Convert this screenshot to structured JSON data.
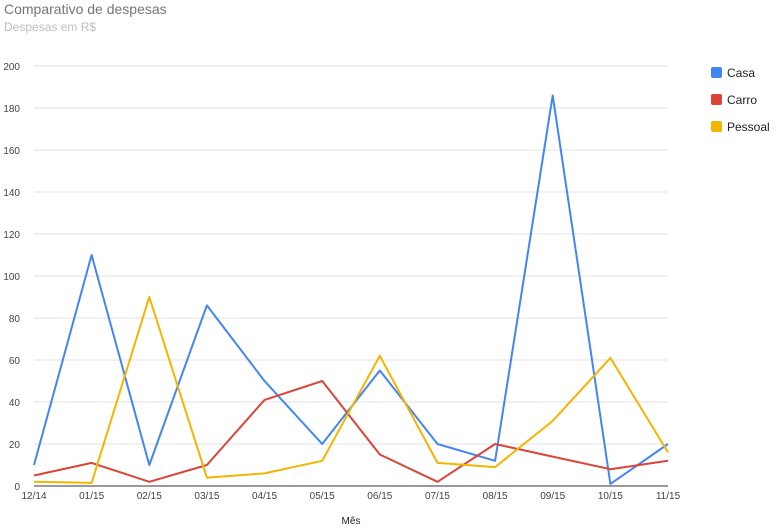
{
  "chart_data": {
    "type": "line",
    "title": "Comparativo de despesas",
    "subtitle": "Despesas em R$",
    "xlabel": "Mês",
    "ylabel": "",
    "categories": [
      "12/14",
      "01/15",
      "02/15",
      "03/15",
      "04/15",
      "05/15",
      "06/15",
      "07/15",
      "08/15",
      "09/15",
      "10/15",
      "11/15"
    ],
    "ylim": [
      0,
      200
    ],
    "yticks": [
      0,
      20,
      40,
      60,
      80,
      100,
      120,
      140,
      160,
      180,
      200
    ],
    "grid": true,
    "legend_position": "right",
    "series": [
      {
        "name": "Casa",
        "color": "#4285f4",
        "values": [
          10,
          110,
          10,
          86,
          50,
          20,
          55,
          20,
          12,
          186,
          1,
          20
        ]
      },
      {
        "name": "Carro",
        "color": "#db4437",
        "values": [
          5,
          11,
          2,
          10,
          41,
          50,
          15,
          2,
          20,
          14,
          8,
          12
        ]
      },
      {
        "name": "Pessoal",
        "color": "#f4b400",
        "values": [
          2,
          1.5,
          90,
          4,
          6,
          12,
          62,
          11,
          9,
          31,
          61,
          16
        ]
      }
    ]
  }
}
